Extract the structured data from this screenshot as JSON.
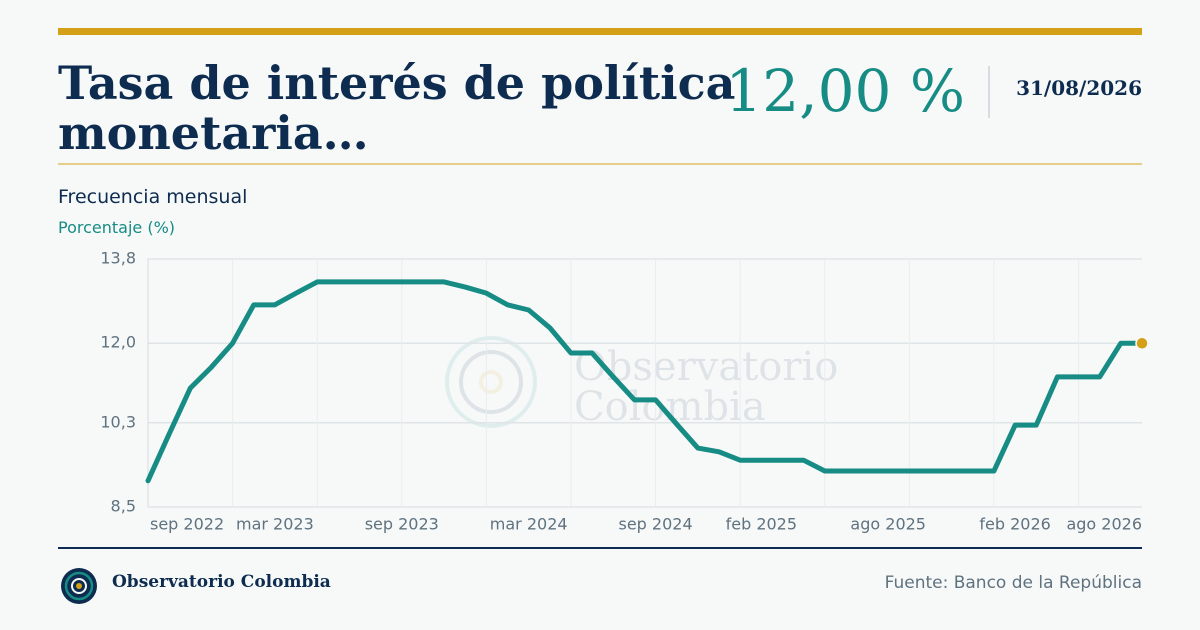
{
  "header": {
    "title": "Tasa de interés de política monetaria…",
    "value": "12,00 %",
    "date": "31/08/2026",
    "frequency": "Frecuencia mensual"
  },
  "chart_data": {
    "type": "line",
    "y_label": "Porcentaje (%)",
    "x": [
      "sep 2022",
      null,
      null,
      null,
      null,
      null,
      "mar 2023",
      null,
      null,
      null,
      null,
      null,
      "sep 2023",
      null,
      null,
      null,
      null,
      null,
      "mar 2024",
      null,
      null,
      null,
      null,
      null,
      "sep 2024",
      null,
      null,
      null,
      null,
      "feb 2025",
      null,
      null,
      null,
      null,
      null,
      "ago 2025",
      null,
      null,
      null,
      null,
      null,
      "feb 2026",
      null,
      null,
      null,
      null,
      null,
      "ago 2026"
    ],
    "series": [
      {
        "name": "Tasa de interés de política monetaria",
        "color": "#168c84",
        "values": [
          9.06,
          10.06,
          11.04,
          11.49,
          12.0,
          12.82,
          12.82,
          13.07,
          13.31,
          13.31,
          13.31,
          13.31,
          13.31,
          13.31,
          13.31,
          13.2,
          13.07,
          12.82,
          12.71,
          12.33,
          11.79,
          11.79,
          11.28,
          10.79,
          10.79,
          10.27,
          9.76,
          9.68,
          9.5,
          9.5,
          9.5,
          9.5,
          9.27,
          9.27,
          9.27,
          9.27,
          9.27,
          9.27,
          9.27,
          9.27,
          9.27,
          10.25,
          10.25,
          11.28,
          11.28,
          11.28,
          12.0,
          12.0
        ]
      }
    ],
    "last_point_color": "#d4a017",
    "ylim": [
      8.5,
      13.8
    ],
    "yticks": [
      {
        "value": 8.5,
        "label": "8,5"
      },
      {
        "value": 10.3,
        "label": "10,3"
      },
      {
        "value": 12.0,
        "label": "12,0"
      },
      {
        "value": 13.8,
        "label": "13,8"
      }
    ],
    "grid": true
  },
  "watermark": [
    "Observatorio",
    "Colombia"
  ],
  "footer": {
    "brand": "Observatorio Colombia",
    "source": "Fuente: Banco de la República"
  }
}
